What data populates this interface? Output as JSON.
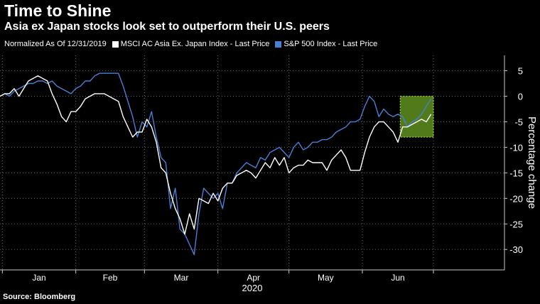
{
  "title": "Time to Shine",
  "subtitle": "Asia ex Japan stocks look set to outperform their U.S. peers",
  "legend": {
    "note": "Normalized As Of 12/31/2019",
    "series1": "MSCI AC Asia Ex. Japan Index - Last Price",
    "series2": "S&P 500 Index - Last Price"
  },
  "source": "Source: Bloomberg",
  "colors": {
    "background": "#000000",
    "series1": "#ffffff",
    "series2": "#4a7fd4",
    "highlight_fill": "#5f8f1f",
    "highlight_border": "#a6d83c"
  },
  "chart_data": {
    "type": "line",
    "xlabel": "2020",
    "ylabel": "Percentage change",
    "ylim": [
      -34,
      8
    ],
    "yticks": [
      5,
      0,
      -5,
      -10,
      -15,
      -20,
      -25,
      -30
    ],
    "ytick_labels": [
      "5",
      "0",
      "-5",
      "-10",
      "-15",
      "-20",
      "-25",
      "-30"
    ],
    "xlim": [
      "2019-12-31",
      "2020-07-31"
    ],
    "month_labels": [
      "Jan",
      "Feb",
      "Mar",
      "Apr",
      "May",
      "Jun"
    ],
    "month_starts": [
      "2020-01-01",
      "2020-02-01",
      "2020-03-01",
      "2020-04-01",
      "2020-05-01",
      "2020-06-01",
      "2020-07-01"
    ],
    "grid": "horizontal dotted",
    "axis_position": "right",
    "highlight": {
      "x_start": "2020-06-17",
      "x_end": "2020-07-01",
      "y_low": -8,
      "y_high": 0
    },
    "series": [
      {
        "name": "MSCI AC Asia Ex. Japan Index - Last Price",
        "x": [
          "2019-12-31",
          "2020-01-02",
          "2020-01-04",
          "2020-01-06",
          "2020-01-08",
          "2020-01-10",
          "2020-01-12",
          "2020-01-14",
          "2020-01-16",
          "2020-01-18",
          "2020-01-20",
          "2020-01-22",
          "2020-01-24",
          "2020-01-26",
          "2020-01-28",
          "2020-01-30",
          "2020-02-01",
          "2020-02-03",
          "2020-02-05",
          "2020-02-07",
          "2020-02-09",
          "2020-02-11",
          "2020-02-13",
          "2020-02-15",
          "2020-02-17",
          "2020-02-19",
          "2020-02-21",
          "2020-02-23",
          "2020-02-25",
          "2020-02-27",
          "2020-02-29",
          "2020-03-02",
          "2020-03-04",
          "2020-03-06",
          "2020-03-08",
          "2020-03-10",
          "2020-03-12",
          "2020-03-14",
          "2020-03-16",
          "2020-03-18",
          "2020-03-20",
          "2020-03-22",
          "2020-03-24",
          "2020-03-26",
          "2020-03-28",
          "2020-03-30",
          "2020-04-01",
          "2020-04-03",
          "2020-04-05",
          "2020-04-07",
          "2020-04-09",
          "2020-04-11",
          "2020-04-13",
          "2020-04-15",
          "2020-04-17",
          "2020-04-19",
          "2020-04-21",
          "2020-04-23",
          "2020-04-25",
          "2020-04-27",
          "2020-04-29",
          "2020-05-01",
          "2020-05-03",
          "2020-05-05",
          "2020-05-07",
          "2020-05-09",
          "2020-05-11",
          "2020-05-13",
          "2020-05-15",
          "2020-05-17",
          "2020-05-19",
          "2020-05-21",
          "2020-05-23",
          "2020-05-25",
          "2020-05-27",
          "2020-05-29",
          "2020-05-31",
          "2020-06-02",
          "2020-06-04",
          "2020-06-06",
          "2020-06-08",
          "2020-06-10",
          "2020-06-12",
          "2020-06-14",
          "2020-06-16",
          "2020-06-18",
          "2020-06-20",
          "2020-06-22",
          "2020-06-24",
          "2020-06-26",
          "2020-06-28",
          "2020-06-30"
        ],
        "values": [
          0,
          0.5,
          0.5,
          1.5,
          0,
          1.5,
          3,
          3.5,
          4,
          3.5,
          3,
          0.5,
          -1.5,
          -4,
          -5,
          -3,
          -3,
          -2,
          -0.5,
          0,
          0.5,
          0.5,
          0.5,
          0,
          -0.5,
          -1,
          -4,
          -6,
          -8,
          -7,
          -7,
          -4.5,
          -6,
          -9,
          -14,
          -15,
          -19,
          -22,
          -24,
          -27,
          -23,
          -26,
          -20,
          -20.5,
          -21,
          -19,
          -20.5,
          -18,
          -17,
          -17,
          -15.5,
          -15,
          -14.5,
          -15,
          -16,
          -14.5,
          -13,
          -14,
          -12,
          -13.5,
          -12,
          -15,
          -14,
          -13.5,
          -13.5,
          -12.5,
          -13,
          -13,
          -13,
          -14.5,
          -12.5,
          -11.5,
          -10.5,
          -12,
          -14.5,
          -14.5,
          -14.5,
          -11,
          -8,
          -6,
          -5,
          -5,
          -6,
          -7,
          -9,
          -6,
          -6,
          -5.5,
          -5,
          -4.5,
          -5,
          -3.5
        ]
      },
      {
        "name": "S&P 500 Index - Last Price",
        "x": [
          "2019-12-31",
          "2020-01-02",
          "2020-01-04",
          "2020-01-06",
          "2020-01-08",
          "2020-01-10",
          "2020-01-12",
          "2020-01-14",
          "2020-01-16",
          "2020-01-18",
          "2020-01-20",
          "2020-01-22",
          "2020-01-24",
          "2020-01-26",
          "2020-01-28",
          "2020-01-30",
          "2020-02-01",
          "2020-02-03",
          "2020-02-05",
          "2020-02-07",
          "2020-02-09",
          "2020-02-11",
          "2020-02-13",
          "2020-02-15",
          "2020-02-17",
          "2020-02-19",
          "2020-02-21",
          "2020-02-23",
          "2020-02-25",
          "2020-02-27",
          "2020-02-29",
          "2020-03-02",
          "2020-03-04",
          "2020-03-06",
          "2020-03-08",
          "2020-03-10",
          "2020-03-12",
          "2020-03-14",
          "2020-03-16",
          "2020-03-18",
          "2020-03-20",
          "2020-03-22",
          "2020-03-24",
          "2020-03-26",
          "2020-03-28",
          "2020-03-30",
          "2020-04-01",
          "2020-04-03",
          "2020-04-05",
          "2020-04-07",
          "2020-04-09",
          "2020-04-11",
          "2020-04-13",
          "2020-04-15",
          "2020-04-17",
          "2020-04-19",
          "2020-04-21",
          "2020-04-23",
          "2020-04-25",
          "2020-04-27",
          "2020-04-29",
          "2020-05-01",
          "2020-05-03",
          "2020-05-05",
          "2020-05-07",
          "2020-05-09",
          "2020-05-11",
          "2020-05-13",
          "2020-05-15",
          "2020-05-17",
          "2020-05-19",
          "2020-05-21",
          "2020-05-23",
          "2020-05-25",
          "2020-05-27",
          "2020-05-29",
          "2020-05-31",
          "2020-06-02",
          "2020-06-04",
          "2020-06-06",
          "2020-06-08",
          "2020-06-10",
          "2020-06-12",
          "2020-06-14",
          "2020-06-16",
          "2020-06-18",
          "2020-06-20",
          "2020-06-22",
          "2020-06-24",
          "2020-06-26",
          "2020-06-28",
          "2020-06-30"
        ],
        "values": [
          0,
          0.5,
          0,
          1,
          1.5,
          2,
          2.5,
          2.5,
          3,
          3,
          2.5,
          3,
          2,
          1.5,
          1,
          0.5,
          1.5,
          2,
          3,
          3,
          4,
          4.5,
          4.5,
          4.5,
          4.5,
          4.5,
          2,
          -1,
          -4,
          -8,
          -5,
          -6,
          -3,
          -8,
          -12,
          -13,
          -22,
          -18,
          -26,
          -27,
          -29,
          -31,
          -23,
          -18,
          -19,
          -20,
          -19,
          -22,
          -17,
          -17,
          -15,
          -14,
          -13,
          -13.5,
          -14,
          -12,
          -12.5,
          -11,
          -10.5,
          -10,
          -11,
          -12,
          -10,
          -9,
          -10.5,
          -10,
          -9,
          -9,
          -8.5,
          -8.5,
          -8,
          -7,
          -6.5,
          -6,
          -5,
          -5,
          -4.5,
          -2,
          0,
          -1,
          -4,
          -2.5,
          -3.5,
          -4,
          -3.5,
          -4,
          -6,
          -5,
          -4.5,
          -3.5,
          -2,
          -0.5
        ]
      }
    ]
  }
}
